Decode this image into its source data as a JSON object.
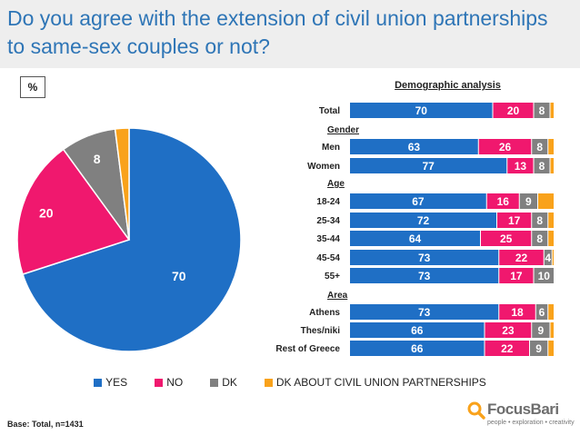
{
  "header": {
    "title": "Do you agree with the extension of civil union partnerships to same-sex couples or not?",
    "unit_badge": "%"
  },
  "colors": {
    "yes": "#1f6fc5",
    "no": "#f0186e",
    "dk": "#808080",
    "dk_about": "#f9a21b",
    "title": "#2e75b6",
    "title_band": "#eeeeee"
  },
  "chart_data": [
    {
      "type": "pie",
      "title": "",
      "labels": [
        "YES",
        "NO",
        "DK",
        "DK ABOUT CIVIL UNION PARTNERSHIPS"
      ],
      "values": [
        70,
        20,
        8,
        2
      ]
    },
    {
      "type": "bar",
      "orientation": "horizontal",
      "stacked": true,
      "title": "Demographic analysis",
      "xlim": [
        0,
        100
      ],
      "series_names": [
        "YES",
        "NO",
        "DK",
        "DK ABOUT CIVIL UNION PARTNERSHIPS"
      ],
      "groups": [
        {
          "name": "",
          "rows": [
            {
              "label": "Total",
              "values": [
                70,
                20,
                8,
                2
              ]
            }
          ]
        },
        {
          "name": "Gender",
          "rows": [
            {
              "label": "Men",
              "values": [
                63,
                26,
                8,
                3
              ]
            },
            {
              "label": "Women",
              "values": [
                77,
                13,
                8,
                2
              ]
            }
          ]
        },
        {
          "name": "Age",
          "rows": [
            {
              "label": "18-24",
              "values": [
                67,
                16,
                9,
                8
              ]
            },
            {
              "label": "25-34",
              "values": [
                72,
                17,
                8,
                3
              ]
            },
            {
              "label": "35-44",
              "values": [
                64,
                25,
                8,
                3
              ]
            },
            {
              "label": "45-54",
              "values": [
                73,
                22,
                4,
                1
              ]
            },
            {
              "label": "55+",
              "values": [
                73,
                17,
                10,
                0
              ]
            }
          ]
        },
        {
          "name": "Area",
          "rows": [
            {
              "label": "Athens",
              "values": [
                73,
                18,
                6,
                3
              ]
            },
            {
              "label": "Thes/niki",
              "values": [
                66,
                23,
                9,
                2
              ]
            },
            {
              "label": "Rest of Greece",
              "values": [
                66,
                22,
                9,
                3
              ]
            }
          ]
        }
      ]
    }
  ],
  "legend": [
    "YES",
    "NO",
    "DK",
    "DK ABOUT CIVIL UNION PARTNERSHIPS"
  ],
  "footer": {
    "base_note": "Base: Total, n=1431",
    "brand": "FocusBari",
    "tagline": "people • exploration • creativity"
  }
}
